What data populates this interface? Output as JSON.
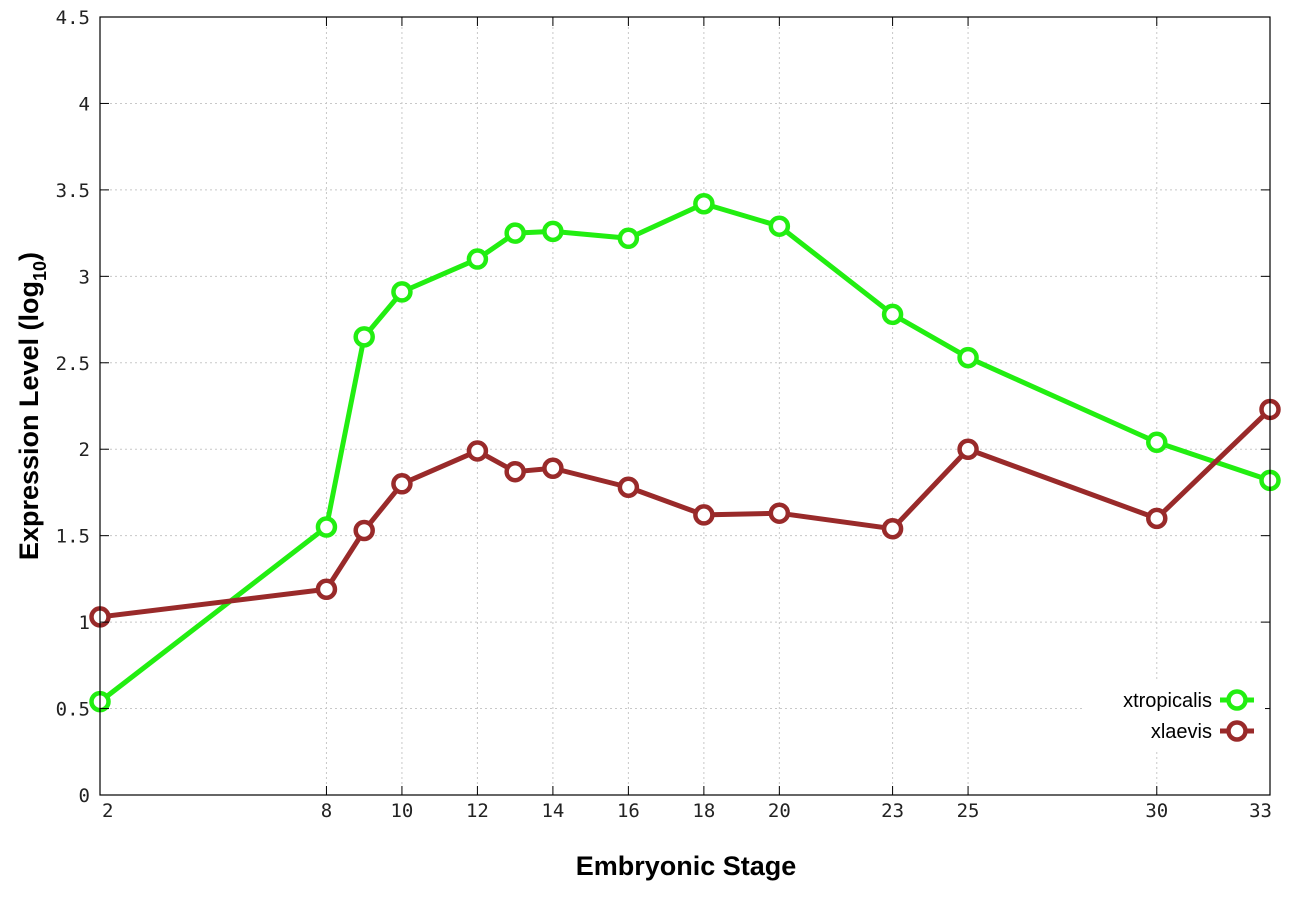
{
  "chart_data": {
    "type": "line",
    "xlabel": "Embryonic Stage",
    "ylabel": "Expression Level (log",
    "ylabel_sub": "10",
    "ylabel_close": ")",
    "x_ticks": [
      2,
      8,
      10,
      12,
      14,
      16,
      18,
      20,
      23,
      25,
      30,
      33
    ],
    "y_ticks": [
      "0",
      "0.5",
      "1",
      "1.5",
      "2",
      "2.5",
      "3",
      "3.5",
      "4",
      "4.5"
    ],
    "xlim": [
      2,
      33
    ],
    "ylim": [
      0,
      4.5
    ],
    "grid": true,
    "legend_position": "bottom-right",
    "x": [
      2,
      8,
      9,
      10,
      12,
      13,
      14,
      16,
      18,
      20,
      23,
      25,
      30,
      33
    ],
    "series": [
      {
        "name": "xtropicalis",
        "color": "#22ee11",
        "values": [
          0.54,
          1.55,
          2.65,
          2.91,
          3.1,
          3.25,
          3.26,
          3.22,
          3.42,
          3.29,
          2.78,
          2.53,
          2.04,
          1.82
        ]
      },
      {
        "name": "xlaevis",
        "color": "#992a2a",
        "values": [
          1.03,
          1.19,
          1.53,
          1.8,
          1.99,
          1.87,
          1.89,
          1.78,
          1.62,
          1.63,
          1.54,
          2.0,
          1.6,
          2.23
        ]
      }
    ]
  }
}
